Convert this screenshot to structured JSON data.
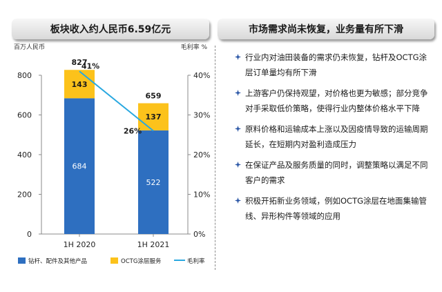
{
  "left_title": "板块收入约人民币6.59亿元",
  "right_title": "市场需求尚未恢复，业务量有所下滑",
  "bullets": [
    "行业内对油田装备的需求仍未恢复，钻杆及OCTG涂层订单量均有所下滑",
    "上游客户仍保持观望，对价格也更为敏感；部分竞争对手采取低价策略，使得行业内整体价格水平下降",
    "原料价格和运输成本上涨以及因疫情导致的运输周期延长，在短期内对盈利造成压力",
    "在保证产品及服务质量的同时，调整策略以满足不同客户的需求",
    "积极开拓新业务领域，例如OCTG涂层在地面集输管线、异形构件等领域的应用"
  ],
  "colors": {
    "blue": "#2e6fc0",
    "yellow": "#fcc21b",
    "line": "#29a8e0",
    "bullet_icon": "#2a56a6"
  },
  "chart_data": {
    "type": "bar",
    "stacked": true,
    "categories": [
      "1H 2020",
      "1H 2021"
    ],
    "series": [
      {
        "name": "钻杆、配件及其他产品",
        "values": [
          684,
          522
        ],
        "color": "#2e6fc0"
      },
      {
        "name": "OCTG涂层服务",
        "values": [
          143,
          137
        ],
        "color": "#fcc21b"
      }
    ],
    "totals": [
      827,
      659
    ],
    "line_series": {
      "name": "毛利率",
      "values": [
        41,
        26
      ],
      "value_labels": [
        "41%",
        "26%"
      ],
      "color": "#29a8e0"
    },
    "ylabel_left": "百万人民币",
    "ylabel_right": "毛利率 %",
    "ylim": [
      0,
      800
    ],
    "ylim_right": [
      0,
      40
    ],
    "yticks": [
      "0",
      "200",
      "400",
      "600",
      "800"
    ],
    "yticks_right": [
      "0%",
      "10%",
      "20%",
      "30%",
      "40%"
    ],
    "legend_position": "bottom"
  }
}
